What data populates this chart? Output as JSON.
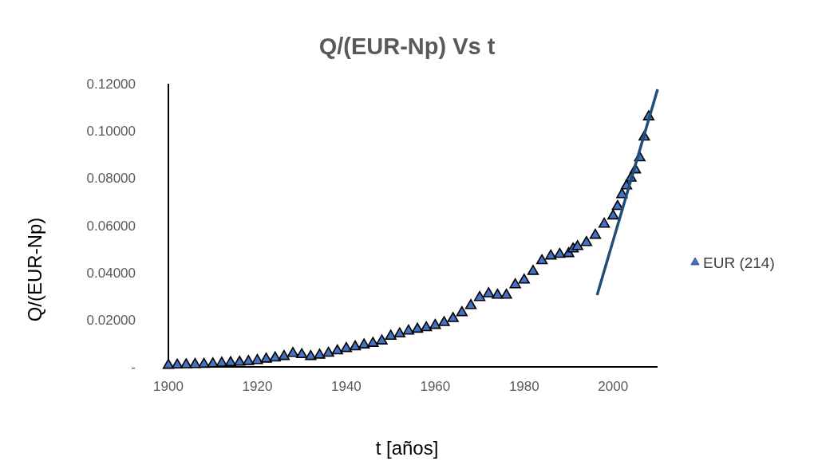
{
  "chart_data": {
    "type": "scatter",
    "title": "Q/(EUR-Np) Vs t",
    "xlabel": "t [años]",
    "ylabel": "Q/(EUR-Np)",
    "xlim": [
      1900,
      2010
    ],
    "xticks": [
      1900,
      1920,
      1940,
      1960,
      1980,
      2000
    ],
    "ylim": [
      0,
      0.12
    ],
    "yticks": [
      {
        "value": 0,
        "label": "-"
      },
      {
        "value": 0.02,
        "label": "0.02000"
      },
      {
        "value": 0.04,
        "label": "0.04000"
      },
      {
        "value": 0.06,
        "label": "0.06000"
      },
      {
        "value": 0.08,
        "label": "0.08000"
      },
      {
        "value": 0.1,
        "label": "0.10000"
      },
      {
        "value": 0.12,
        "label": "0.12000"
      }
    ],
    "grid": false,
    "legend": "right",
    "series": [
      {
        "name": "EUR (214)",
        "marker": "triangle",
        "color": "#4472c4",
        "x": [
          1900,
          1902,
          1904,
          1906,
          1908,
          1910,
          1912,
          1914,
          1916,
          1918,
          1920,
          1922,
          1924,
          1926,
          1928,
          1930,
          1932,
          1934,
          1936,
          1938,
          1940,
          1942,
          1944,
          1946,
          1948,
          1950,
          1952,
          1954,
          1956,
          1958,
          1960,
          1962,
          1964,
          1966,
          1968,
          1970,
          1972,
          1974,
          1976,
          1978,
          1980,
          1982,
          1984,
          1986,
          1988,
          1990,
          1991,
          1992,
          1994,
          1996,
          1998,
          2000,
          2001,
          2002,
          2003,
          2004,
          2005,
          2006,
          2007,
          2008
        ],
        "values": [
          0.0007,
          0.0008,
          0.0009,
          0.001,
          0.0011,
          0.0013,
          0.0016,
          0.0018,
          0.002,
          0.0023,
          0.0027,
          0.0033,
          0.0038,
          0.0044,
          0.0057,
          0.0052,
          0.0044,
          0.005,
          0.0058,
          0.0068,
          0.0078,
          0.0085,
          0.0093,
          0.01,
          0.011,
          0.013,
          0.014,
          0.0152,
          0.016,
          0.0166,
          0.0176,
          0.0188,
          0.0205,
          0.023,
          0.026,
          0.0294,
          0.031,
          0.0304,
          0.0304,
          0.0348,
          0.0368,
          0.0405,
          0.045,
          0.047,
          0.0477,
          0.048,
          0.05,
          0.051,
          0.0527,
          0.0558,
          0.0605,
          0.064,
          0.068,
          0.073,
          0.0767,
          0.08,
          0.0835,
          0.0886,
          0.0974,
          0.106
        ]
      },
      {
        "type": "line",
        "color": "#1f4e79",
        "x": [
          1996.4,
          2010
        ],
        "values": [
          0.0304,
          0.1176
        ]
      }
    ]
  }
}
